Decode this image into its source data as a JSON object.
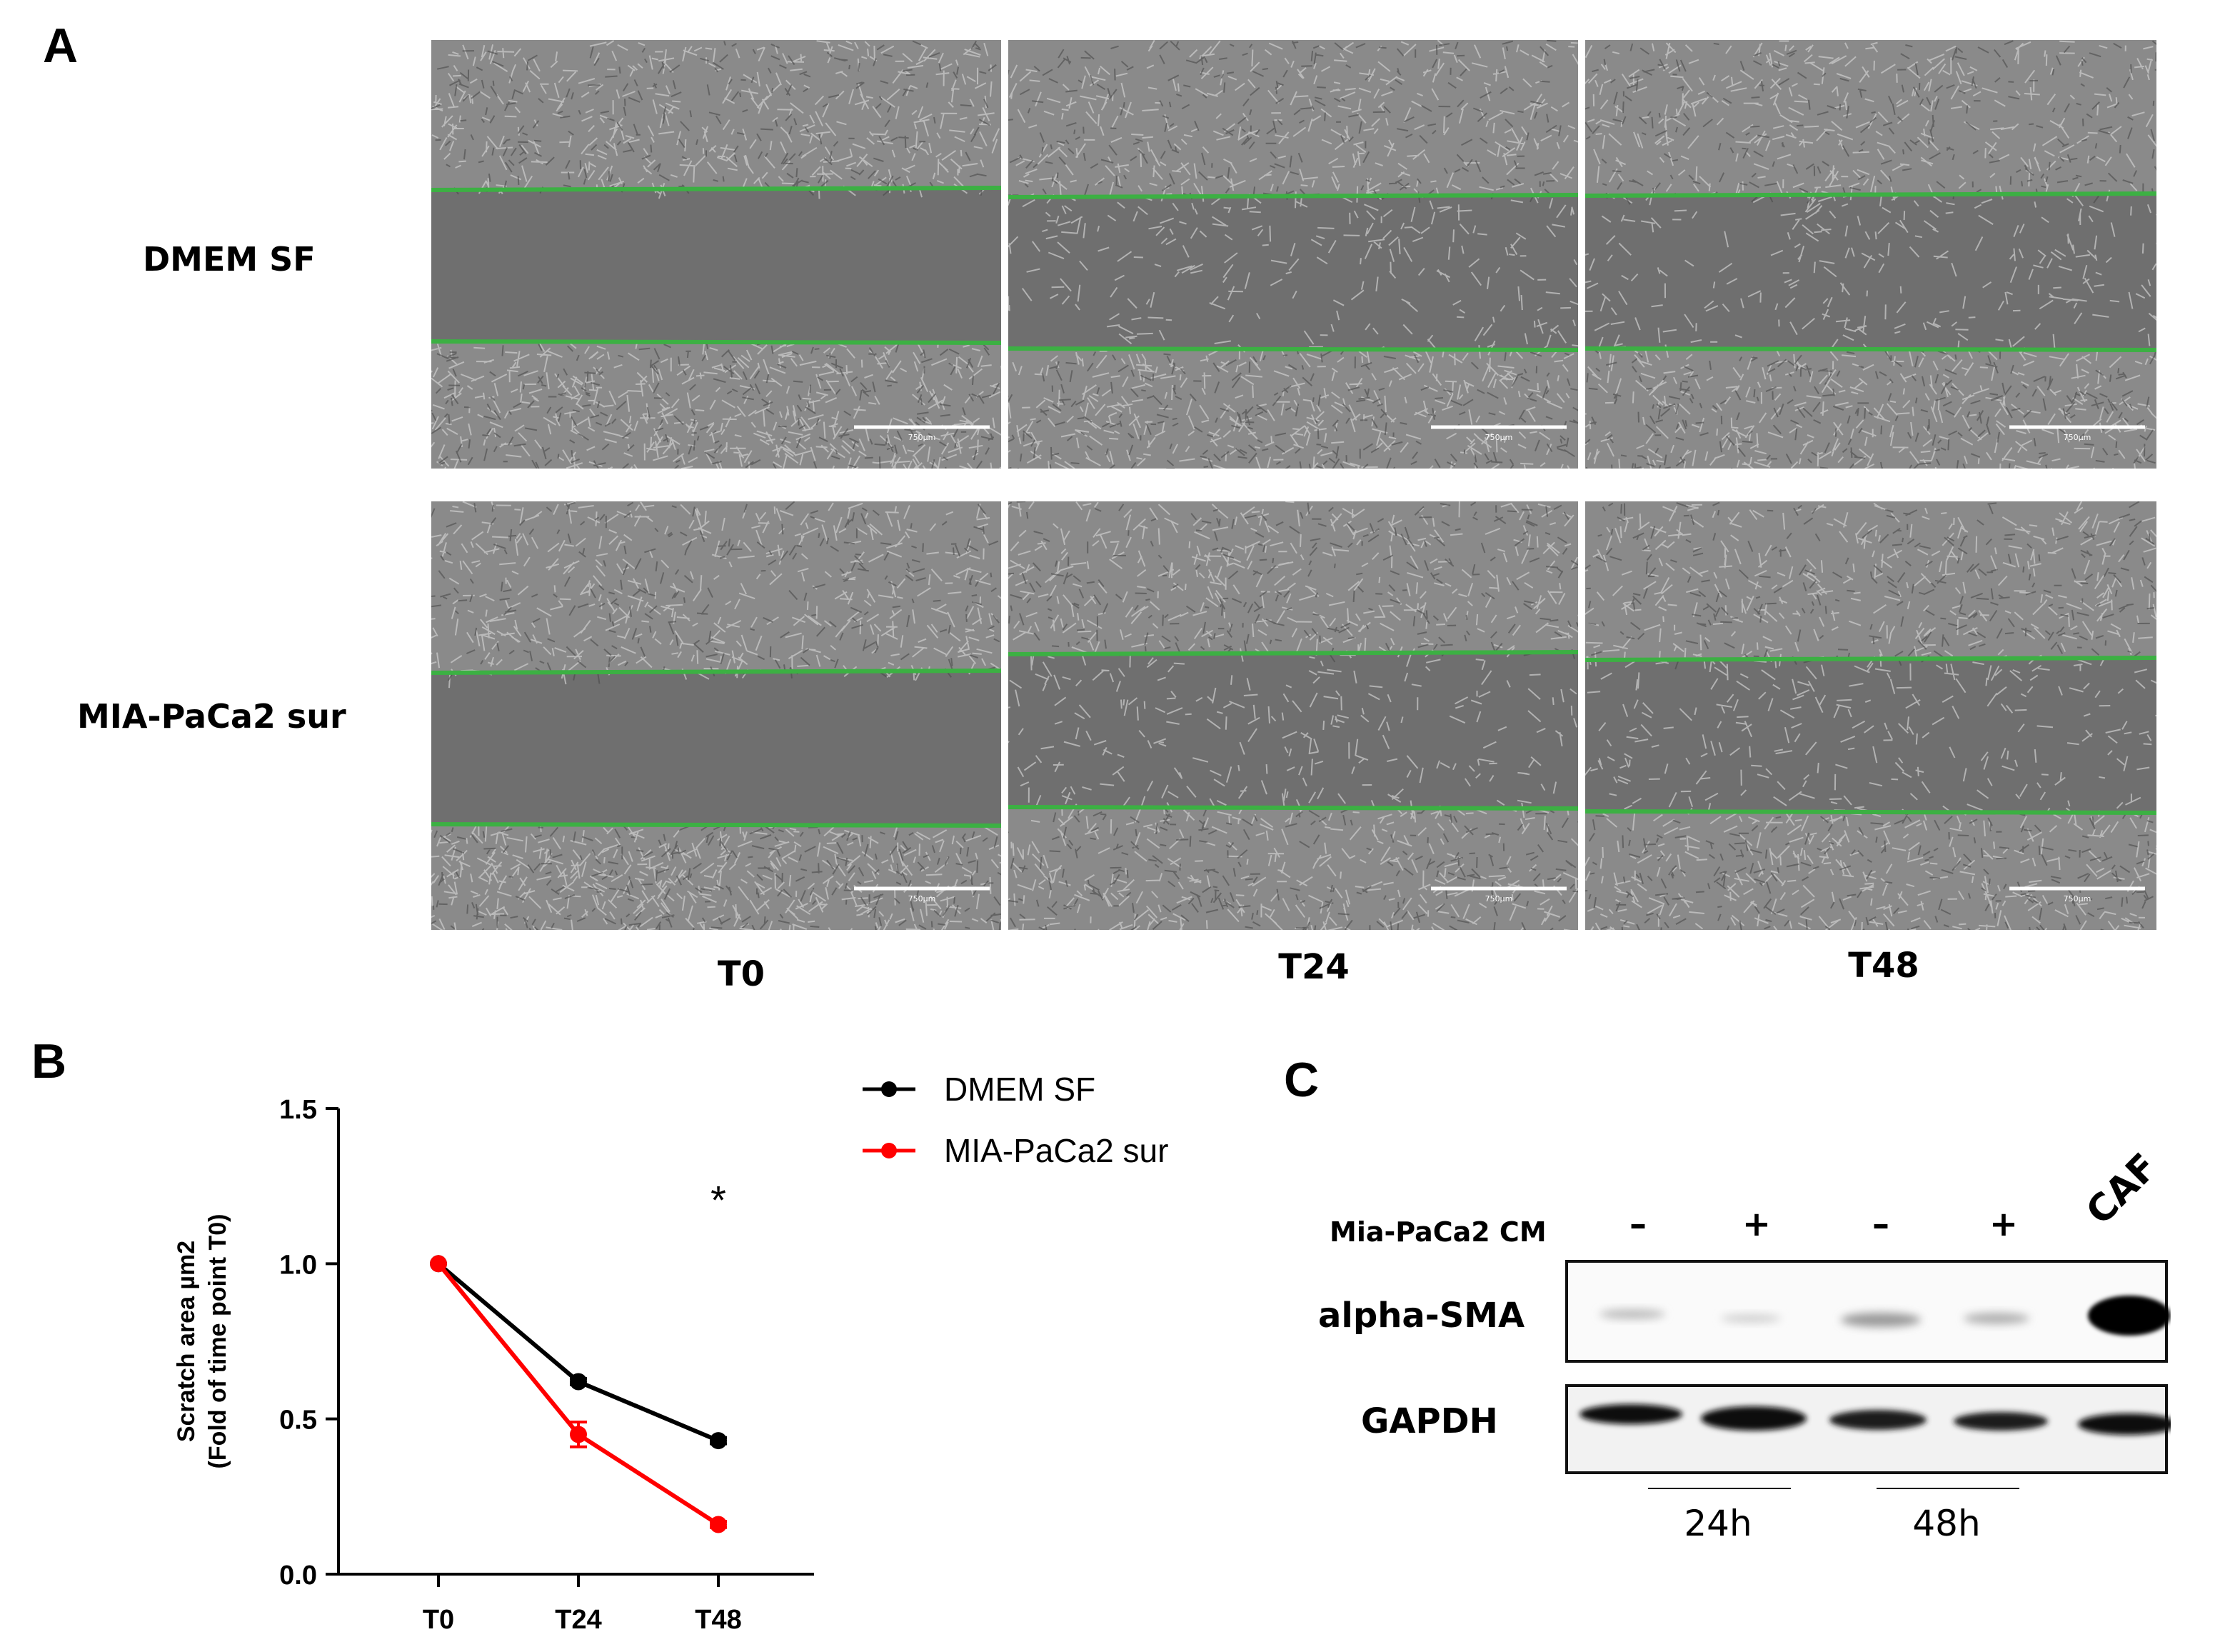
{
  "panel_a": {
    "letter": "A",
    "rows": [
      "DMEM SF",
      "MIA-PaCa2 sur"
    ],
    "columns": [
      "T0",
      "T24",
      "T48"
    ],
    "scale_bar_label": "750µm",
    "wound_line_color": "#3cb043",
    "monolayer_color": "#8a8a8a",
    "gap_color": "#6f6f6f"
  },
  "panel_b": {
    "letter": "B",
    "legend": [
      {
        "name": "DMEM SF",
        "color": "#000000"
      },
      {
        "name": "MIA-PaCa2 sur",
        "color": "#ff0000"
      }
    ],
    "significance": "*"
  },
  "chart_data": {
    "type": "line",
    "title": "",
    "xlabel": "",
    "ylabel": "Scratch area µm2",
    "ylabel2": "(Fold of time point T0)",
    "categories": [
      "T0",
      "T24",
      "T48"
    ],
    "ylim": [
      0.0,
      1.5
    ],
    "yticks": [
      "0.0",
      "0.5",
      "1.0",
      "1.5"
    ],
    "series": [
      {
        "name": "DMEM SF",
        "color": "#000000",
        "values": [
          1.0,
          0.62,
          0.43
        ],
        "errors": [
          0.0,
          0.01,
          0.01
        ]
      },
      {
        "name": "MIA-PaCa2 sur",
        "color": "#ff0000",
        "values": [
          1.0,
          0.45,
          0.16
        ],
        "errors": [
          0.0,
          0.04,
          0.01
        ]
      }
    ],
    "annotations": [
      {
        "text": "*",
        "category": "T48",
        "y": 1.22
      }
    ]
  },
  "panel_c": {
    "letter": "C",
    "condition_label": "Mia-PaCa2 CM",
    "lane_signs": [
      "–",
      "+",
      "–",
      "+"
    ],
    "caf_label": "CAF",
    "proteins": [
      "alpha-SMA",
      "GAPDH"
    ],
    "time_groups": [
      "24h",
      "48h"
    ]
  }
}
